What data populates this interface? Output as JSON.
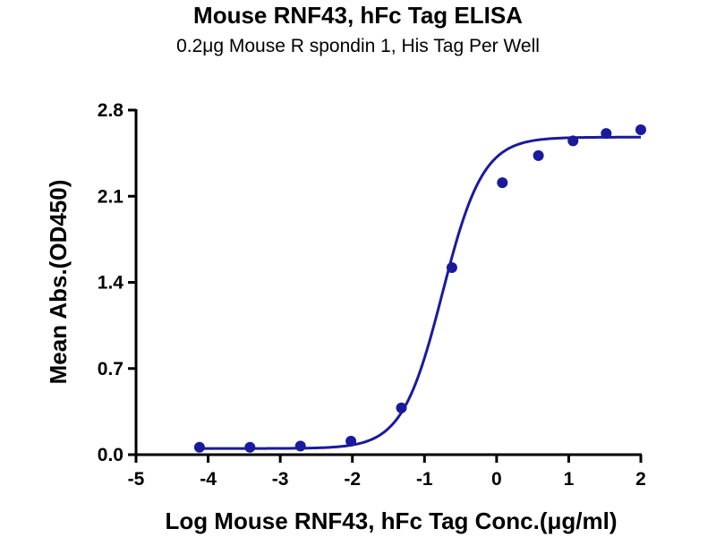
{
  "chart_data": {
    "type": "scatter",
    "title": "Mouse RNF43, hFc Tag ELISA",
    "subtitle": "0.2μg Mouse R spondin 1, His Tag Per Well",
    "xlabel": "Log Mouse RNF43, hFc Tag Conc.(μg/ml)",
    "ylabel": "Mean Abs.(OD450)",
    "xlim": [
      -5,
      2
    ],
    "ylim": [
      0,
      2.8
    ],
    "x_ticks": [
      "-5",
      "-4",
      "-3",
      "-2",
      "-1",
      "0",
      "1",
      "2"
    ],
    "y_ticks": [
      "0.0",
      "0.7",
      "1.4",
      "2.1",
      "2.8"
    ],
    "grid": false,
    "color": "#1a1a9c",
    "series": [
      {
        "x": [
          -4.12,
          -3.42,
          -2.72,
          -2.02,
          -1.32,
          -0.62,
          0.08,
          0.58,
          1.06,
          1.52,
          2.0
        ],
        "y": [
          0.06,
          0.06,
          0.07,
          0.11,
          0.38,
          1.52,
          2.21,
          2.43,
          2.55,
          2.61,
          2.64
        ]
      }
    ],
    "fit_curve": {
      "type": "4PL",
      "bottom": 0.05,
      "top": 2.58,
      "log_ec50": -0.75,
      "hill_slope": 1.55,
      "x_range": [
        -4.12,
        2.0
      ]
    }
  }
}
